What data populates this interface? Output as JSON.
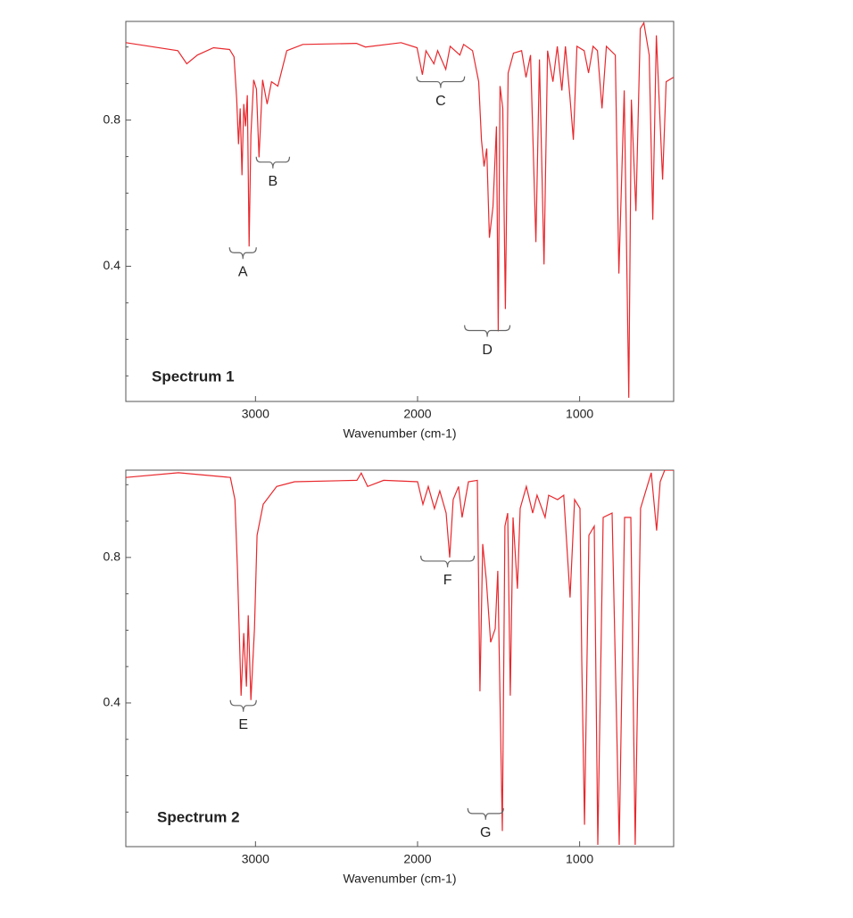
{
  "chart_data": [
    {
      "type": "line",
      "title": "Spectrum 1",
      "xlabel": "Wavenumber (cm-1)",
      "xlim": [
        3800,
        420
      ],
      "ylim": [
        0.03,
        1.07
      ],
      "xticks": [
        3000,
        2000,
        1000
      ],
      "yticks": [
        0.4,
        0.8
      ],
      "yminor_ticks": [
        0.1,
        0.2,
        0.3,
        0.5,
        0.6,
        0.7,
        0.9,
        1.0
      ],
      "x": [
        3800,
        3479,
        3424,
        3358,
        3259,
        3160,
        3132,
        3116,
        3105,
        3094,
        3083,
        3072,
        3061,
        3050,
        3039,
        3028,
        3011,
        2994,
        2978,
        2956,
        2928,
        2901,
        2862,
        2807,
        2708,
        2377,
        2322,
        2102,
        2003,
        1970,
        1948,
        1899,
        1876,
        1826,
        1799,
        1739,
        1716,
        1661,
        1623,
        1606,
        1590,
        1573,
        1557,
        1535,
        1513,
        1502,
        1491,
        1474,
        1458,
        1441,
        1408,
        1358,
        1331,
        1303,
        1270,
        1248,
        1220,
        1198,
        1165,
        1138,
        1110,
        1088,
        1061,
        1039,
        1017,
        972,
        945,
        917,
        890,
        862,
        835,
        780,
        758,
        725,
        697,
        681,
        653,
        626,
        604,
        571,
        549,
        527,
        488,
        466,
        422
      ],
      "series": [
        {
          "color": "#e8282d",
          "values": [
            1.012,
            0.99,
            0.954,
            0.978,
            0.998,
            0.993,
            0.973,
            0.856,
            0.734,
            0.832,
            0.649,
            0.844,
            0.783,
            0.868,
            0.454,
            0.759,
            0.91,
            0.885,
            0.698,
            0.91,
            0.844,
            0.905,
            0.893,
            0.99,
            1.007,
            1.01,
            1.0,
            1.012,
            0.998,
            0.924,
            0.99,
            0.954,
            0.99,
            0.939,
            1.002,
            0.978,
            1.007,
            0.99,
            0.905,
            0.746,
            0.673,
            0.722,
            0.478,
            0.563,
            0.783,
            0.222,
            0.893,
            0.832,
            0.283,
            0.929,
            0.983,
            0.99,
            0.917,
            0.978,
            0.466,
            0.966,
            0.405,
            0.99,
            0.905,
            1.002,
            0.881,
            1.002,
            0.868,
            0.746,
            1.002,
            0.99,
            0.929,
            1.002,
            0.99,
            0.832,
            1.002,
            0.978,
            0.38,
            0.881,
            0.04,
            0.856,
            0.551,
            1.05,
            1.066,
            0.978,
            0.527,
            1.032,
            0.637,
            0.905,
            0.917
          ]
        }
      ],
      "annotations": [
        {
          "text": "A",
          "x": [
            3160,
            2995
          ],
          "y": 0.437
        },
        {
          "text": "B",
          "x": [
            2995,
            2790
          ],
          "y": 0.685
        },
        {
          "text": "C",
          "x": [
            2005,
            1710
          ],
          "y": 0.905
        },
        {
          "text": "D",
          "x": [
            1710,
            1430
          ],
          "y": 0.224
        }
      ]
    },
    {
      "type": "line",
      "title": "Spectrum 2",
      "xlabel": "Wavenumber (cm-1)",
      "xlim": [
        3800,
        420
      ],
      "ylim": [
        0.005,
        1.04
      ],
      "xticks": [
        3000,
        2000,
        1000
      ],
      "yticks": [
        0.4,
        0.8
      ],
      "yminor_ticks": [
        0.1,
        0.2,
        0.3,
        0.5,
        0.6,
        0.7,
        0.9,
        1.0
      ],
      "x": [
        3800,
        3475,
        3155,
        3127,
        3111,
        3089,
        3072,
        3056,
        3045,
        3028,
        3006,
        2990,
        2952,
        2869,
        2759,
        2374,
        2347,
        2308,
        2209,
        2000,
        1967,
        1934,
        1896,
        1863,
        1824,
        1802,
        1780,
        1747,
        1725,
        1686,
        1631,
        1615,
        1598,
        1576,
        1549,
        1521,
        1505,
        1477,
        1461,
        1444,
        1428,
        1411,
        1384,
        1367,
        1329,
        1290,
        1263,
        1213,
        1191,
        1136,
        1098,
        1059,
        1031,
        998,
        987,
        970,
        943,
        910,
        888,
        855,
        800,
        756,
        723,
        684,
        657,
        624,
        558,
        525,
        503,
        475,
        420
      ],
      "series": [
        {
          "color": "#e8282d",
          "values": [
            1.02,
            1.033,
            1.02,
            0.959,
            0.763,
            0.42,
            0.592,
            0.445,
            0.641,
            0.408,
            0.604,
            0.861,
            0.946,
            0.995,
            1.008,
            1.012,
            1.032,
            0.995,
            1.012,
            1.008,
            0.946,
            0.995,
            0.934,
            0.983,
            0.922,
            0.8,
            0.959,
            0.995,
            0.91,
            1.008,
            1.012,
            0.432,
            0.837,
            0.739,
            0.567,
            0.604,
            0.763,
            0.048,
            0.886,
            0.922,
            0.42,
            0.91,
            0.714,
            0.935,
            0.995,
            0.922,
            0.971,
            0.91,
            0.971,
            0.959,
            0.971,
            0.69,
            0.959,
            0.935,
            0.518,
            0.065,
            0.861,
            0.886,
            0.01,
            0.91,
            0.922,
            0.01,
            0.91,
            0.91,
            0.01,
            0.935,
            1.033,
            0.874,
            1.008,
            1.04,
            1.04
          ]
        }
      ],
      "annotations": [
        {
          "text": "E",
          "x": [
            3155,
            2995
          ],
          "y": 0.393
        },
        {
          "text": "F",
          "x": [
            1980,
            1650
          ],
          "y": 0.79
        },
        {
          "text": "G",
          "x": [
            1690,
            1470
          ],
          "y": 0.096
        }
      ]
    }
  ]
}
